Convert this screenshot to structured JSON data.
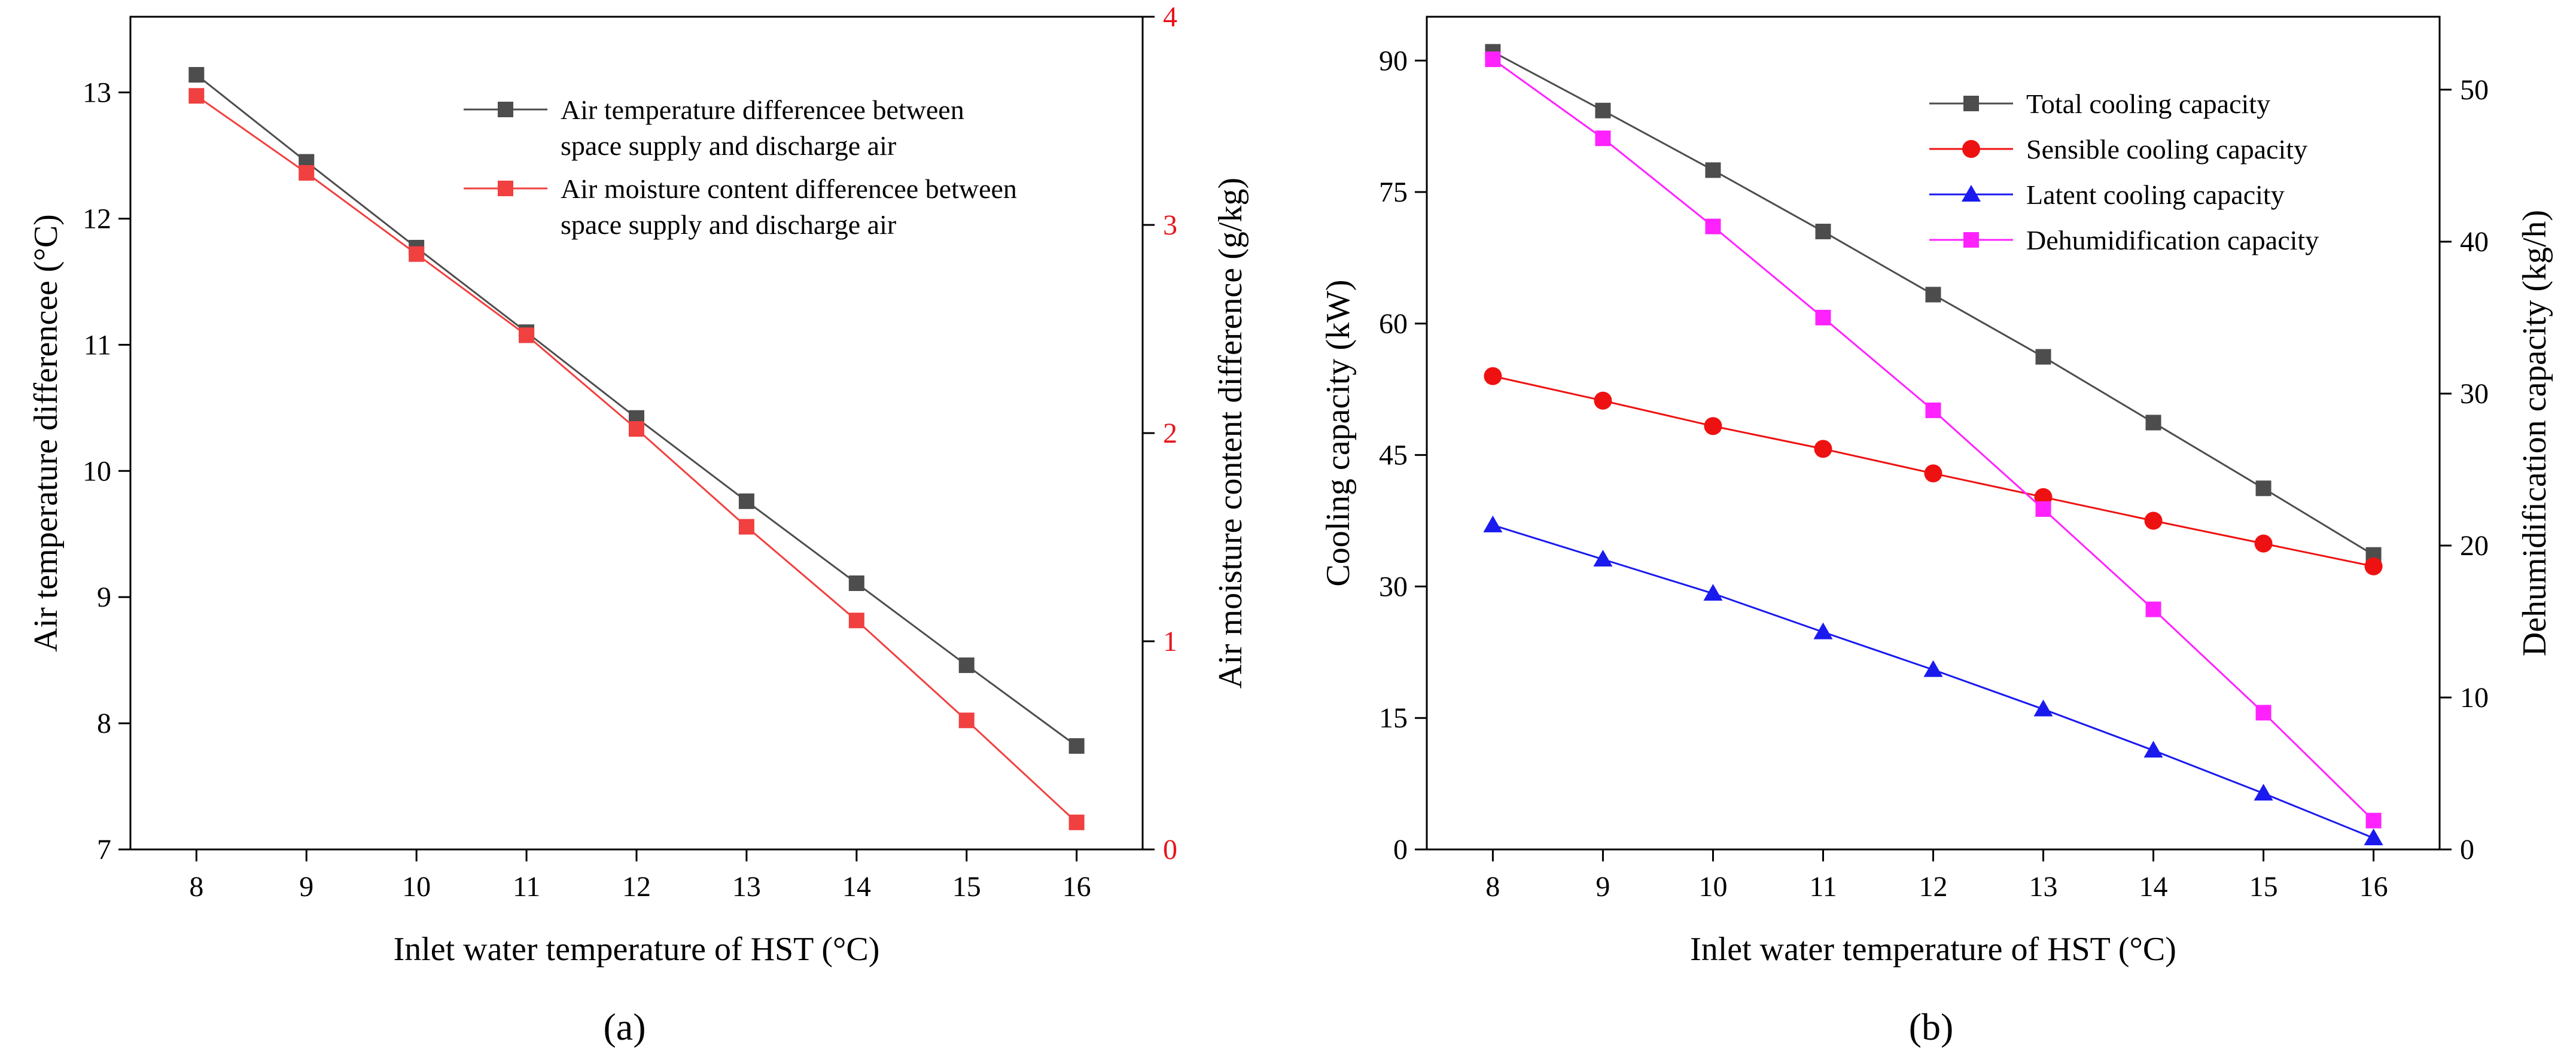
{
  "figure": {
    "panel_labels": [
      "(a)",
      "(b)"
    ]
  },
  "chart_data": [
    {
      "type": "line",
      "panel": "(a)",
      "xlabel": "Inlet water temperature of HST (°C)",
      "ylabel": "Air temperature differencee (°C)",
      "y2label": "Air moisture content difference (g/kg)",
      "x": [
        8,
        9,
        10,
        11,
        12,
        13,
        14,
        15,
        16
      ],
      "xlim": [
        7.4,
        16.6
      ],
      "ylim": [
        7,
        13.6
      ],
      "y2lim": [
        0,
        4
      ],
      "xticks": [
        "8",
        "9",
        "10",
        "11",
        "12",
        "13",
        "14",
        "15",
        "16"
      ],
      "yticks": [
        "7",
        "8",
        "9",
        "10",
        "11",
        "12",
        "13"
      ],
      "y2ticks": [
        "0",
        "1",
        "2",
        "3",
        "4"
      ],
      "legend_position": "top-right",
      "series": [
        {
          "name": "Air temperature differencee between space supply and discharge air",
          "legend_lines": [
            "Air temperature differencee between",
            "space supply and discharge air"
          ],
          "axis": "left",
          "color": "#4d4d4d",
          "marker": "square",
          "values": [
            13.14,
            12.45,
            11.77,
            11.1,
            10.42,
            9.76,
            9.11,
            8.46,
            7.82
          ]
        },
        {
          "name": "Air moisture content differencee between space supply and discharge air",
          "legend_lines": [
            "Air moisture content differencee between",
            "space supply and discharge air"
          ],
          "axis": "right",
          "color": "#f04040",
          "marker": "square",
          "values": [
            3.62,
            3.25,
            2.86,
            2.47,
            2.02,
            1.55,
            1.1,
            0.62,
            0.13
          ]
        }
      ]
    },
    {
      "type": "line",
      "panel": "(b)",
      "xlabel": "Inlet water temperature of HST (°C)",
      "ylabel": "Cooling capacity (kW)",
      "y2label": "Dehumidification capacity (kg/h)",
      "x": [
        8,
        9,
        10,
        11,
        12,
        13,
        14,
        15,
        16
      ],
      "xlim": [
        7.4,
        16.6
      ],
      "ylim": [
        0,
        95
      ],
      "y2lim": [
        0,
        54.8
      ],
      "xticks": [
        "8",
        "9",
        "10",
        "11",
        "12",
        "13",
        "14",
        "15",
        "16"
      ],
      "yticks": [
        "0",
        "15",
        "30",
        "45",
        "60",
        "75",
        "90"
      ],
      "y2ticks": [
        "0",
        "10",
        "20",
        "30",
        "40",
        "50"
      ],
      "legend_position": "top-right",
      "series": [
        {
          "name": "Total cooling capacity",
          "axis": "left",
          "color": "#4d4d4d",
          "marker": "square",
          "values": [
            91,
            84.3,
            77.5,
            70.5,
            63.3,
            56.2,
            48.7,
            41.2,
            33.6
          ]
        },
        {
          "name": "Sensible cooling capacity",
          "axis": "left",
          "color": "#ee1111",
          "marker": "circle",
          "values": [
            54,
            51.2,
            48.3,
            45.7,
            42.9,
            40.2,
            37.5,
            34.9,
            32.3
          ]
        },
        {
          "name": "Latent cooling capacity",
          "axis": "left",
          "color": "#1a1aee",
          "marker": "triangle",
          "values": [
            37,
            33.1,
            29.2,
            24.8,
            20.5,
            16,
            11.3,
            6.4,
            1.3
          ]
        },
        {
          "name": "Dehumidification capacity",
          "axis": "right",
          "color": "#ff22ff",
          "marker": "square",
          "values": [
            52,
            46.8,
            41,
            35,
            28.9,
            22.4,
            15.8,
            9,
            1.9
          ]
        }
      ]
    }
  ]
}
